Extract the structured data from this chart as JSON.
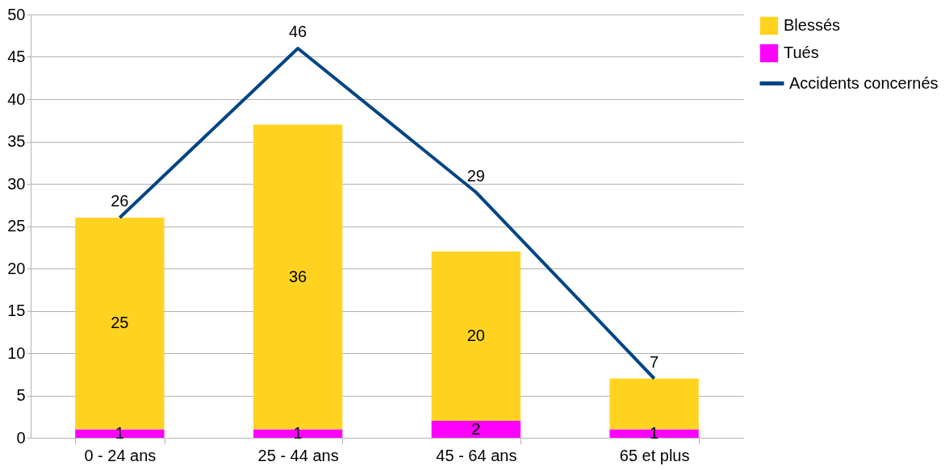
{
  "chart_data": {
    "type": "bar",
    "stacked": true,
    "categories": [
      "0 - 24 ans",
      "25 - 44 ans",
      "45 - 64 ans",
      "65 et plus"
    ],
    "series": [
      {
        "name": "Tués",
        "color": "#ff00ff",
        "values": [
          1,
          1,
          2,
          1
        ],
        "value_labels": [
          "1",
          "1",
          "2",
          "1"
        ]
      },
      {
        "name": "Blessés",
        "color": "#ffd320",
        "values": [
          25,
          36,
          20,
          6
        ],
        "value_labels": [
          "25",
          "36",
          "20",
          null
        ]
      },
      {
        "name": "Accidents concernés",
        "type": "line",
        "color": "#004586",
        "values": [
          26,
          46,
          29,
          7
        ],
        "value_labels": [
          "26",
          "46",
          "29",
          "7"
        ]
      }
    ],
    "ylim": [
      0,
      50
    ],
    "yticks": [
      0,
      5,
      10,
      15,
      20,
      25,
      30,
      35,
      40,
      45,
      50
    ],
    "grid": "y",
    "legend": "right",
    "marker": "none",
    "line_style": "solid"
  }
}
